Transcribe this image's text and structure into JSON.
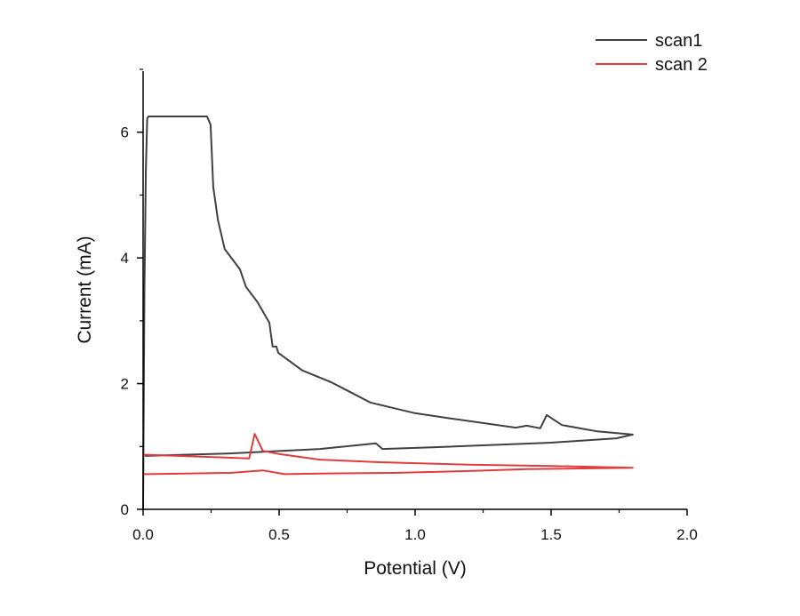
{
  "chart_data": {
    "type": "line",
    "title": "",
    "xlabel": "Potential (V)",
    "ylabel": "Current (mA)",
    "xlim": [
      0,
      2.0
    ],
    "ylim": [
      0,
      7
    ],
    "xticks": [
      0.0,
      0.5,
      1.0,
      1.5,
      2.0
    ],
    "xtick_labels": [
      "0.0",
      "0.5",
      "1.0",
      "1.5",
      "2.0"
    ],
    "yticks": [
      0,
      2,
      4,
      6
    ],
    "ytick_labels": [
      "0",
      "2",
      "4",
      "6"
    ],
    "grid": false,
    "legend_position": "top-right",
    "series": [
      {
        "name": "scan1",
        "color": "#404040",
        "x": [
          0.0,
          0.005,
          0.01,
          0.015,
          0.02,
          0.1,
          0.235,
          0.248,
          0.258,
          0.275,
          0.3,
          0.356,
          0.378,
          0.42,
          0.464,
          0.476,
          0.49,
          0.497,
          0.585,
          0.693,
          0.835,
          0.999,
          1.108,
          1.37,
          1.41,
          1.46,
          1.484,
          1.54,
          1.67,
          1.8,
          1.74,
          1.5,
          1.085,
          0.88,
          0.856,
          0.65,
          0.32,
          0.007
        ],
        "y": [
          0.0,
          3.5,
          5.4,
          6.22,
          6.25,
          6.25,
          6.25,
          6.12,
          5.13,
          4.6,
          4.14,
          3.82,
          3.54,
          3.3,
          2.97,
          2.59,
          2.59,
          2.49,
          2.21,
          2.02,
          1.7,
          1.53,
          1.46,
          1.3,
          1.33,
          1.29,
          1.5,
          1.34,
          1.24,
          1.19,
          1.13,
          1.06,
          0.99,
          0.96,
          1.05,
          0.96,
          0.89,
          0.85
        ]
      },
      {
        "name": "scan 2",
        "color": "#e03c3c",
        "x": [
          0.0,
          0.2,
          0.39,
          0.41,
          0.44,
          0.5,
          0.65,
          0.87,
          1.2,
          1.5,
          1.8,
          1.41,
          1.2,
          0.92,
          0.65,
          0.52,
          0.44,
          0.32,
          0.02,
          0.0
        ],
        "y": [
          0.87,
          0.84,
          0.81,
          1.2,
          0.93,
          0.88,
          0.79,
          0.75,
          0.71,
          0.69,
          0.66,
          0.64,
          0.61,
          0.58,
          0.57,
          0.56,
          0.62,
          0.58,
          0.56,
          0.56
        ]
      }
    ]
  }
}
